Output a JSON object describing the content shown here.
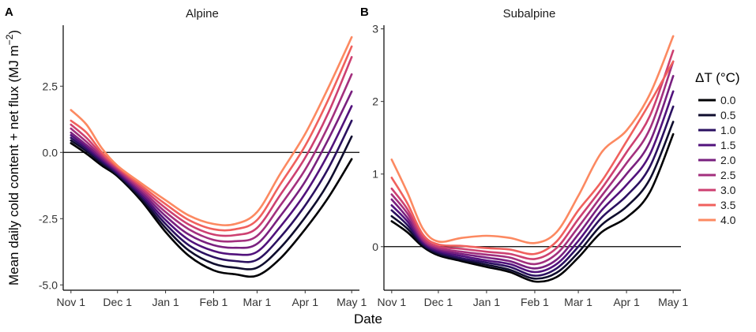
{
  "figure": {
    "xlabel": "Date",
    "ylabel": "Mean daily cold content + net flux (MJ m",
    "ylabel_sup": "−2",
    "ylabel_close": ")"
  },
  "legend": {
    "title": "ΔT (°C)",
    "entries": [
      "0.0",
      "0.5",
      "1.0",
      "1.5",
      "2.0",
      "2.5",
      "3.0",
      "3.5",
      "4.0"
    ],
    "colors": [
      "#000004",
      "#0f0d2e",
      "#2b1161",
      "#51127c",
      "#79207f",
      "#a3307e",
      "#cd4071",
      "#f0605d",
      "#fc8961"
    ]
  },
  "chart_data": [
    {
      "type": "line",
      "panel": "A",
      "title": "Alpine",
      "xlabel": "Date",
      "ylabel": "Mean daily cold content + net flux (MJ m−2)",
      "x_tick_labels": [
        "Nov 1",
        "Dec 1",
        "Jan 1",
        "Feb 1",
        "Mar 1",
        "Apr 1",
        "May 1"
      ],
      "x_tick_days": [
        0,
        30,
        61,
        92,
        120,
        151,
        181
      ],
      "xlim": [
        -5,
        186
      ],
      "y_ticks": [
        -5.0,
        -2.5,
        0.0,
        2.5
      ],
      "y_tick_labels": [
        "-5.0",
        "-2.5",
        "0.0",
        "2.5"
      ],
      "ylim": [
        -5.2,
        4.8
      ],
      "hline": 0,
      "x": [
        0,
        10,
        20,
        30,
        45,
        61,
        76,
        92,
        106,
        120,
        135,
        151,
        166,
        181
      ],
      "series": [
        {
          "name": "0.0",
          "values": [
            0.35,
            -0.05,
            -0.5,
            -0.9,
            -1.8,
            -3.0,
            -3.9,
            -4.45,
            -4.6,
            -4.65,
            -4.0,
            -2.9,
            -1.7,
            -0.25
          ]
        },
        {
          "name": "0.5",
          "values": [
            0.45,
            0.05,
            -0.42,
            -0.85,
            -1.72,
            -2.85,
            -3.7,
            -4.2,
            -4.35,
            -4.35,
            -3.6,
            -2.45,
            -1.15,
            0.6
          ]
        },
        {
          "name": "1.0",
          "values": [
            0.55,
            0.12,
            -0.35,
            -0.8,
            -1.64,
            -2.7,
            -3.5,
            -3.95,
            -4.1,
            -4.05,
            -3.2,
            -2.0,
            -0.6,
            1.2
          ]
        },
        {
          "name": "1.5",
          "values": [
            0.65,
            0.2,
            -0.28,
            -0.75,
            -1.56,
            -2.55,
            -3.3,
            -3.72,
            -3.85,
            -3.75,
            -2.8,
            -1.55,
            -0.05,
            1.75
          ]
        },
        {
          "name": "2.0",
          "values": [
            0.75,
            0.28,
            -0.22,
            -0.7,
            -1.48,
            -2.4,
            -3.1,
            -3.5,
            -3.6,
            -3.45,
            -2.4,
            -1.1,
            0.5,
            2.3
          ]
        },
        {
          "name": "2.5",
          "values": [
            0.9,
            0.4,
            -0.15,
            -0.65,
            -1.4,
            -2.25,
            -2.9,
            -3.3,
            -3.35,
            -3.15,
            -2.0,
            -0.65,
            1.0,
            2.95
          ]
        },
        {
          "name": "3.0",
          "values": [
            1.05,
            0.55,
            -0.08,
            -0.6,
            -1.32,
            -2.1,
            -2.72,
            -3.1,
            -3.12,
            -2.85,
            -1.6,
            -0.2,
            1.5,
            3.6
          ]
        },
        {
          "name": "3.5",
          "values": [
            1.2,
            0.75,
            0.0,
            -0.55,
            -1.24,
            -1.95,
            -2.55,
            -2.9,
            -2.9,
            -2.55,
            -1.2,
            0.25,
            2.0,
            4.0
          ]
        },
        {
          "name": "4.0",
          "values": [
            1.6,
            1.05,
            0.15,
            -0.5,
            -1.15,
            -1.8,
            -2.38,
            -2.7,
            -2.7,
            -2.25,
            -0.8,
            0.7,
            2.45,
            4.35
          ]
        }
      ]
    },
    {
      "type": "line",
      "panel": "B",
      "title": "Subalpine",
      "xlabel": "Date",
      "ylabel": "",
      "x_tick_labels": [
        "Nov 1",
        "Dec 1",
        "Jan 1",
        "Feb 1",
        "Mar 1",
        "Apr 1",
        "May 1"
      ],
      "x_tick_days": [
        0,
        30,
        61,
        92,
        120,
        151,
        181
      ],
      "xlim": [
        -5,
        186
      ],
      "y_ticks": [
        0,
        1,
        2,
        3
      ],
      "y_tick_labels": [
        "0",
        "1",
        "2",
        "3"
      ],
      "ylim": [
        -0.6,
        3.05
      ],
      "hline": 0,
      "x": [
        0,
        10,
        20,
        30,
        45,
        61,
        76,
        92,
        106,
        120,
        135,
        151,
        166,
        181
      ],
      "series": [
        {
          "name": "0.0",
          "values": [
            0.35,
            0.2,
            0.0,
            -0.12,
            -0.2,
            -0.28,
            -0.35,
            -0.48,
            -0.42,
            -0.15,
            0.2,
            0.4,
            0.75,
            1.55
          ]
        },
        {
          "name": "0.5",
          "values": [
            0.42,
            0.25,
            0.02,
            -0.1,
            -0.18,
            -0.25,
            -0.32,
            -0.44,
            -0.36,
            -0.08,
            0.3,
            0.55,
            0.93,
            1.72
          ]
        },
        {
          "name": "1.0",
          "values": [
            0.5,
            0.3,
            0.04,
            -0.08,
            -0.16,
            -0.22,
            -0.28,
            -0.4,
            -0.3,
            0.0,
            0.4,
            0.7,
            1.1,
            1.93
          ]
        },
        {
          "name": "1.5",
          "values": [
            0.57,
            0.35,
            0.06,
            -0.06,
            -0.13,
            -0.19,
            -0.24,
            -0.35,
            -0.24,
            0.08,
            0.5,
            0.85,
            1.27,
            2.14
          ]
        },
        {
          "name": "2.0",
          "values": [
            0.65,
            0.4,
            0.08,
            -0.04,
            -0.1,
            -0.15,
            -0.2,
            -0.3,
            -0.18,
            0.17,
            0.6,
            1.0,
            1.44,
            2.35
          ]
        },
        {
          "name": "2.5",
          "values": [
            0.72,
            0.46,
            0.1,
            -0.02,
            -0.07,
            -0.11,
            -0.15,
            -0.24,
            -0.1,
            0.27,
            0.7,
            1.15,
            1.62,
            2.55
          ]
        },
        {
          "name": "3.0",
          "values": [
            0.8,
            0.52,
            0.13,
            0.0,
            -0.03,
            -0.07,
            -0.1,
            -0.17,
            -0.02,
            0.38,
            0.8,
            1.3,
            1.8,
            2.7
          ]
        },
        {
          "name": "3.5",
          "values": [
            0.95,
            0.6,
            0.17,
            0.03,
            0.01,
            -0.02,
            -0.04,
            -0.1,
            0.07,
            0.5,
            0.9,
            1.45,
            1.98,
            2.55
          ]
        },
        {
          "name": "4.0",
          "values": [
            1.2,
            0.75,
            0.25,
            0.07,
            0.12,
            0.15,
            0.12,
            0.05,
            0.2,
            0.7,
            1.3,
            1.6,
            2.1,
            2.9
          ]
        }
      ]
    }
  ]
}
